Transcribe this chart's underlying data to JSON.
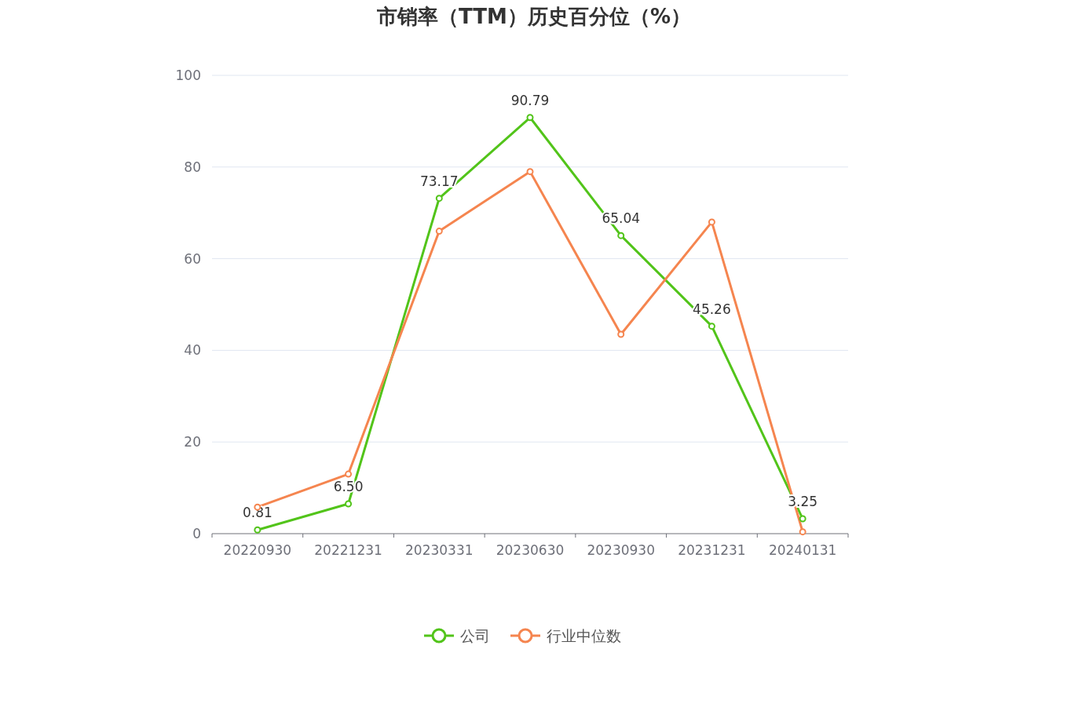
{
  "chart_data": {
    "type": "line",
    "title": "市销率（TTM）历史百分位（%）",
    "categories": [
      "20220930",
      "20221231",
      "20230331",
      "20230630",
      "20230930",
      "20231231",
      "20240131"
    ],
    "series": [
      {
        "name": "公司",
        "color": "#52c41a",
        "values": [
          0.81,
          6.5,
          73.17,
          90.79,
          65.04,
          45.26,
          3.25
        ],
        "value_labels": [
          "0.81",
          "6.50",
          "73.17",
          "90.79",
          "65.04",
          "45.26",
          "3.25"
        ]
      },
      {
        "name": "行业中位数",
        "color": "#f5854f",
        "values": [
          5.8,
          13,
          66,
          79,
          43.5,
          68,
          0.4
        ]
      }
    ],
    "ylim": [
      0,
      100
    ],
    "yticks": [
      0,
      20,
      40,
      60,
      80,
      100
    ],
    "grid": "y",
    "legend": "bottom",
    "marker": "circle"
  }
}
